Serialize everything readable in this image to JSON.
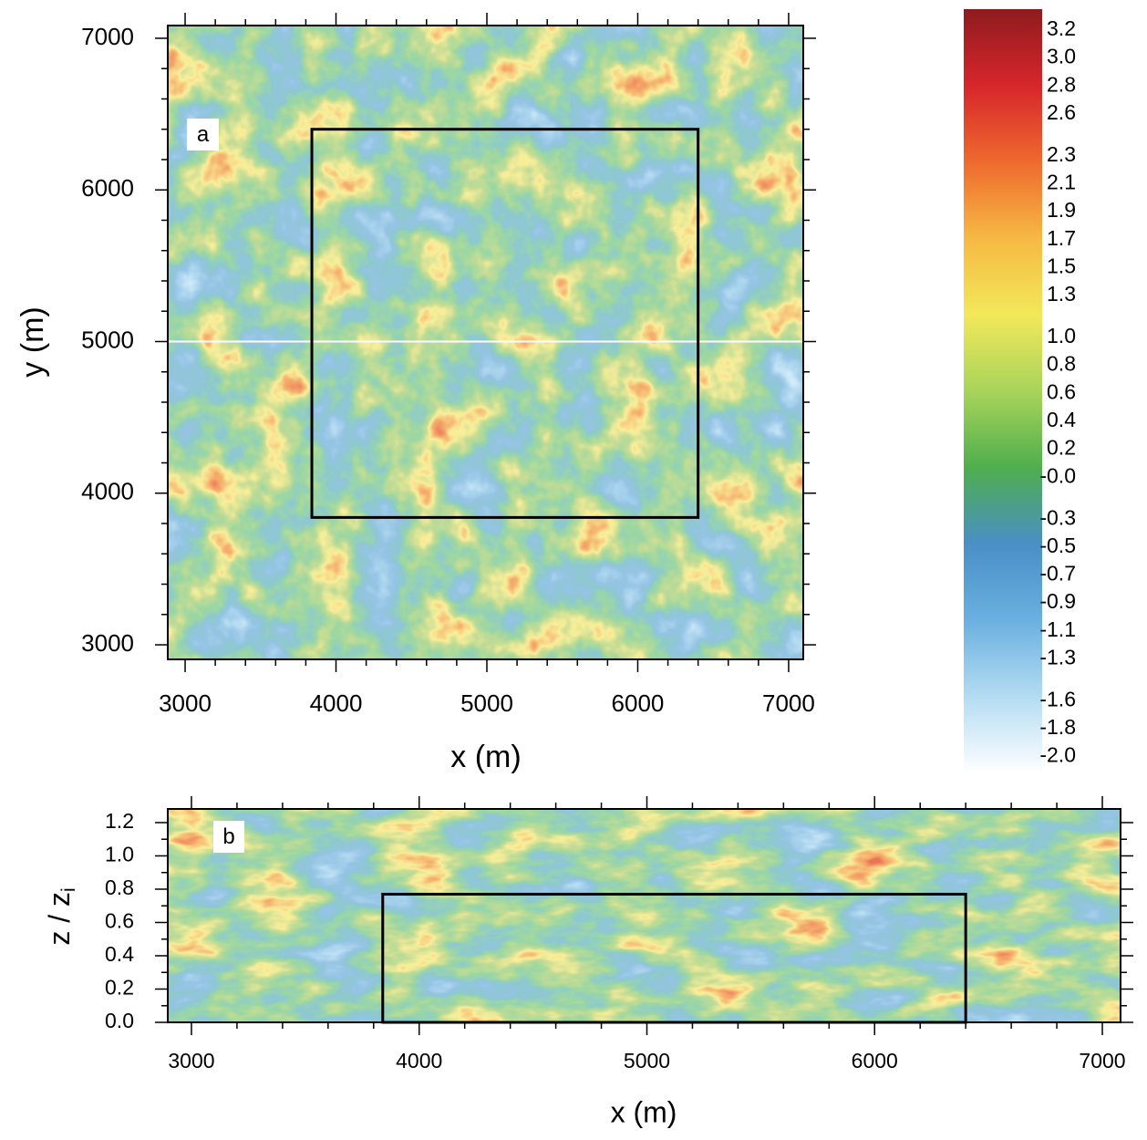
{
  "chart_data": [
    {
      "type": "heatmap",
      "panel_label": "a",
      "xlabel": "x (m)",
      "ylabel": "y (m)",
      "xlim": [
        2885,
        7097
      ],
      "ylim": [
        2904,
        7084
      ],
      "xticks": [
        3000,
        4000,
        5000,
        6000,
        7000
      ],
      "yticks": [
        3000,
        4000,
        5000,
        6000,
        7000
      ],
      "box": {
        "x": [
          3840,
          6400
        ],
        "y": [
          3840,
          6400
        ]
      },
      "hline": 5000
    },
    {
      "type": "heatmap",
      "panel_label": "b",
      "xlabel": "x (m)",
      "ylabel": "z / z",
      "ylabel_subscript": "i",
      "xlim": [
        2896,
        7080
      ],
      "ylim": [
        0,
        1.282
      ],
      "xticks": [
        3000,
        4000,
        5000,
        6000,
        7000
      ],
      "yticks": [
        {
          "value": 0,
          "label": "0.0"
        },
        0.2,
        0.4,
        0.6,
        0.8,
        {
          "value": 1,
          "label": "1.0"
        },
        1.2
      ],
      "box": {
        "x": [
          3840,
          6400
        ],
        "y": [
          0,
          0.77
        ]
      }
    },
    {
      "type": "colorbar",
      "ylim": [
        -2.12,
        3.35
      ],
      "colors": [
        "#8e1b1e",
        "#d7262b",
        "#ee6a2e",
        "#f6b944",
        "#f2e85a",
        "#a8d45a",
        "#4fae4e",
        "#4a8fc6",
        "#6ab0e0",
        "#b4dcf2",
        "#ffffff"
      ],
      "yticks": [
        3.2,
        {
          "value": 3,
          "label": "3.0"
        },
        2.8,
        2.6,
        2.3,
        2.1,
        1.9,
        1.7,
        1.5,
        1.3,
        {
          "value": 1,
          "label": "1.0"
        },
        0.8,
        0.6,
        0.4,
        0.2,
        {
          "value": 0,
          "label": "-0.0"
        },
        -0.3,
        -0.5,
        -0.7,
        -0.9,
        -1.1,
        -1.3,
        -1.6,
        -1.8,
        {
          "value": -2,
          "label": "-2.0"
        }
      ]
    }
  ]
}
